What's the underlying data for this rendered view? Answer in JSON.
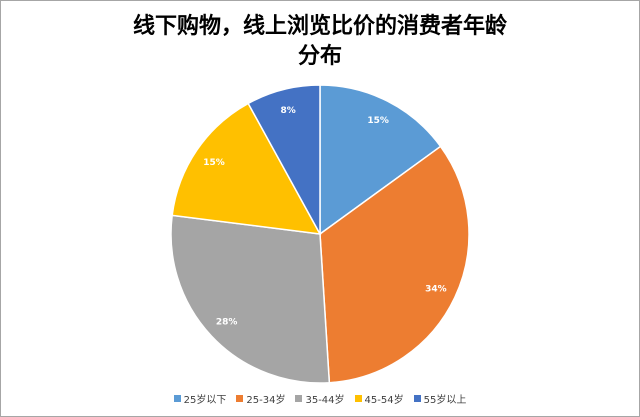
{
  "chart_data": {
    "type": "pie",
    "title_line1": "线下购物，线上浏览比价的消费者年龄",
    "title_line2": "分布",
    "categories": [
      "25岁以下",
      "25-34岁",
      "35-44岁",
      "45-54岁",
      "55岁以上"
    ],
    "values": [
      15,
      34,
      28,
      15,
      8
    ],
    "data_labels": [
      "15%",
      "34%",
      "28%",
      "15%",
      "8%"
    ],
    "colors": [
      "#5b9bd5",
      "#ed7d31",
      "#a5a5a5",
      "#ffc000",
      "#4472c4"
    ],
    "legend_position": "bottom"
  }
}
